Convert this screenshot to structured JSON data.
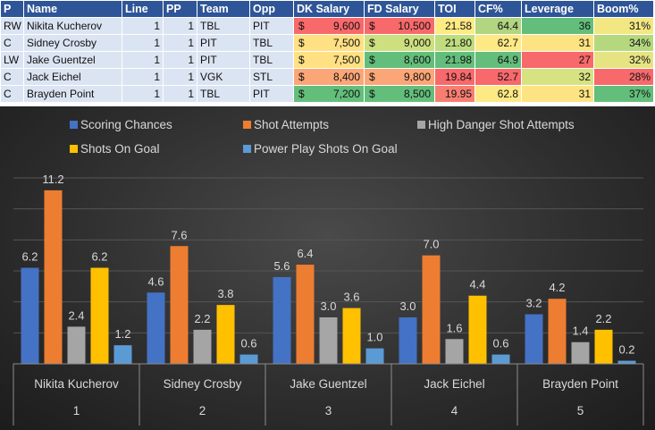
{
  "table": {
    "columns": [
      "P",
      "Name",
      "Line",
      "PP",
      "Team",
      "Opp",
      "DK Salary",
      "FD Salary",
      "TOI",
      "CF%",
      "Leverage",
      "Boom%"
    ],
    "currency_symbol": "$",
    "rows": [
      {
        "pos": "RW",
        "name": "Nikita Kucherov",
        "line": "1",
        "pp": "1",
        "team": "TBL",
        "opp": "PIT",
        "dk": "9,600",
        "fd": "10,500",
        "toi": "21.58",
        "cf": "64.4",
        "lev": "36",
        "boom": "31%",
        "colors": {
          "dk": "#f8696b",
          "fd": "#f8696b",
          "toi": "#ffeb84",
          "cf": "#b1d580",
          "lev": "#63be7b",
          "boom": "#f2e783"
        }
      },
      {
        "pos": "C",
        "name": "Sidney Crosby",
        "line": "1",
        "pp": "1",
        "team": "PIT",
        "opp": "TBL",
        "dk": "7,500",
        "fd": "9,000",
        "toi": "21.80",
        "cf": "62.7",
        "lev": "31",
        "boom": "34%",
        "colors": {
          "dk": "#ffe083",
          "fd": "#cce07f",
          "toi": "#bfdc7f",
          "cf": "#ffe985",
          "lev": "#fee382",
          "boom": "#b5d87f"
        }
      },
      {
        "pos": "LW",
        "name": "Jake Guentzel",
        "line": "1",
        "pp": "1",
        "team": "PIT",
        "opp": "TBL",
        "dk": "7,500",
        "fd": "8,600",
        "toi": "21.98",
        "cf": "64.9",
        "lev": "27",
        "boom": "32%",
        "colors": {
          "dk": "#ffe083",
          "fd": "#63be7b",
          "toi": "#63be7b",
          "cf": "#63be7b",
          "lev": "#f8696b",
          "boom": "#e6e383"
        }
      },
      {
        "pos": "C",
        "name": "Jack Eichel",
        "line": "1",
        "pp": "1",
        "team": "VGK",
        "opp": "STL",
        "dk": "8,400",
        "fd": "9,800",
        "toi": "19.84",
        "cf": "52.7",
        "lev": "32",
        "boom": "28%",
        "colors": {
          "dk": "#fba677",
          "fd": "#fba677",
          "toi": "#f8696b",
          "cf": "#f8696b",
          "lev": "#d7e381",
          "boom": "#f8696b"
        }
      },
      {
        "pos": "C",
        "name": "Brayden Point",
        "line": "1",
        "pp": "1",
        "team": "TBL",
        "opp": "PIT",
        "dk": "7,200",
        "fd": "8,500",
        "toi": "19.95",
        "cf": "62.8",
        "lev": "31",
        "boom": "37%",
        "colors": {
          "dk": "#63be7b",
          "fd": "#63be7b",
          "toi": "#f87e72",
          "cf": "#ffe985",
          "lev": "#fee382",
          "boom": "#63be7b"
        }
      }
    ]
  },
  "chart_data": {
    "type": "bar",
    "categories": [
      "Nikita Kucherov",
      "Sidney Crosby",
      "Jake Guentzel",
      "Jack Eichel",
      "Brayden Point"
    ],
    "category_index": [
      "1",
      "2",
      "3",
      "4",
      "5"
    ],
    "series": [
      {
        "name": "Scoring Chances",
        "color": "#4472c4",
        "values": [
          6.2,
          4.6,
          5.6,
          3.0,
          3.2
        ]
      },
      {
        "name": "Shot Attempts",
        "color": "#ed7d31",
        "values": [
          11.2,
          7.6,
          6.4,
          7.0,
          4.2
        ]
      },
      {
        "name": "High Danger Shot Attempts",
        "color": "#a5a5a5",
        "values": [
          2.4,
          2.2,
          3.0,
          1.6,
          1.4
        ]
      },
      {
        "name": "Shots On Goal",
        "color": "#ffc000",
        "values": [
          6.2,
          3.8,
          3.6,
          4.4,
          2.2
        ]
      },
      {
        "name": "Power Play Shots On Goal",
        "color": "#5b9bd5",
        "values": [
          1.2,
          0.6,
          1.0,
          0.6,
          0.2
        ]
      }
    ],
    "ylim": [
      0,
      12
    ],
    "grid": true,
    "data_labels": true,
    "legend_position": "top",
    "value_format": "0.0",
    "background": "#333333"
  }
}
